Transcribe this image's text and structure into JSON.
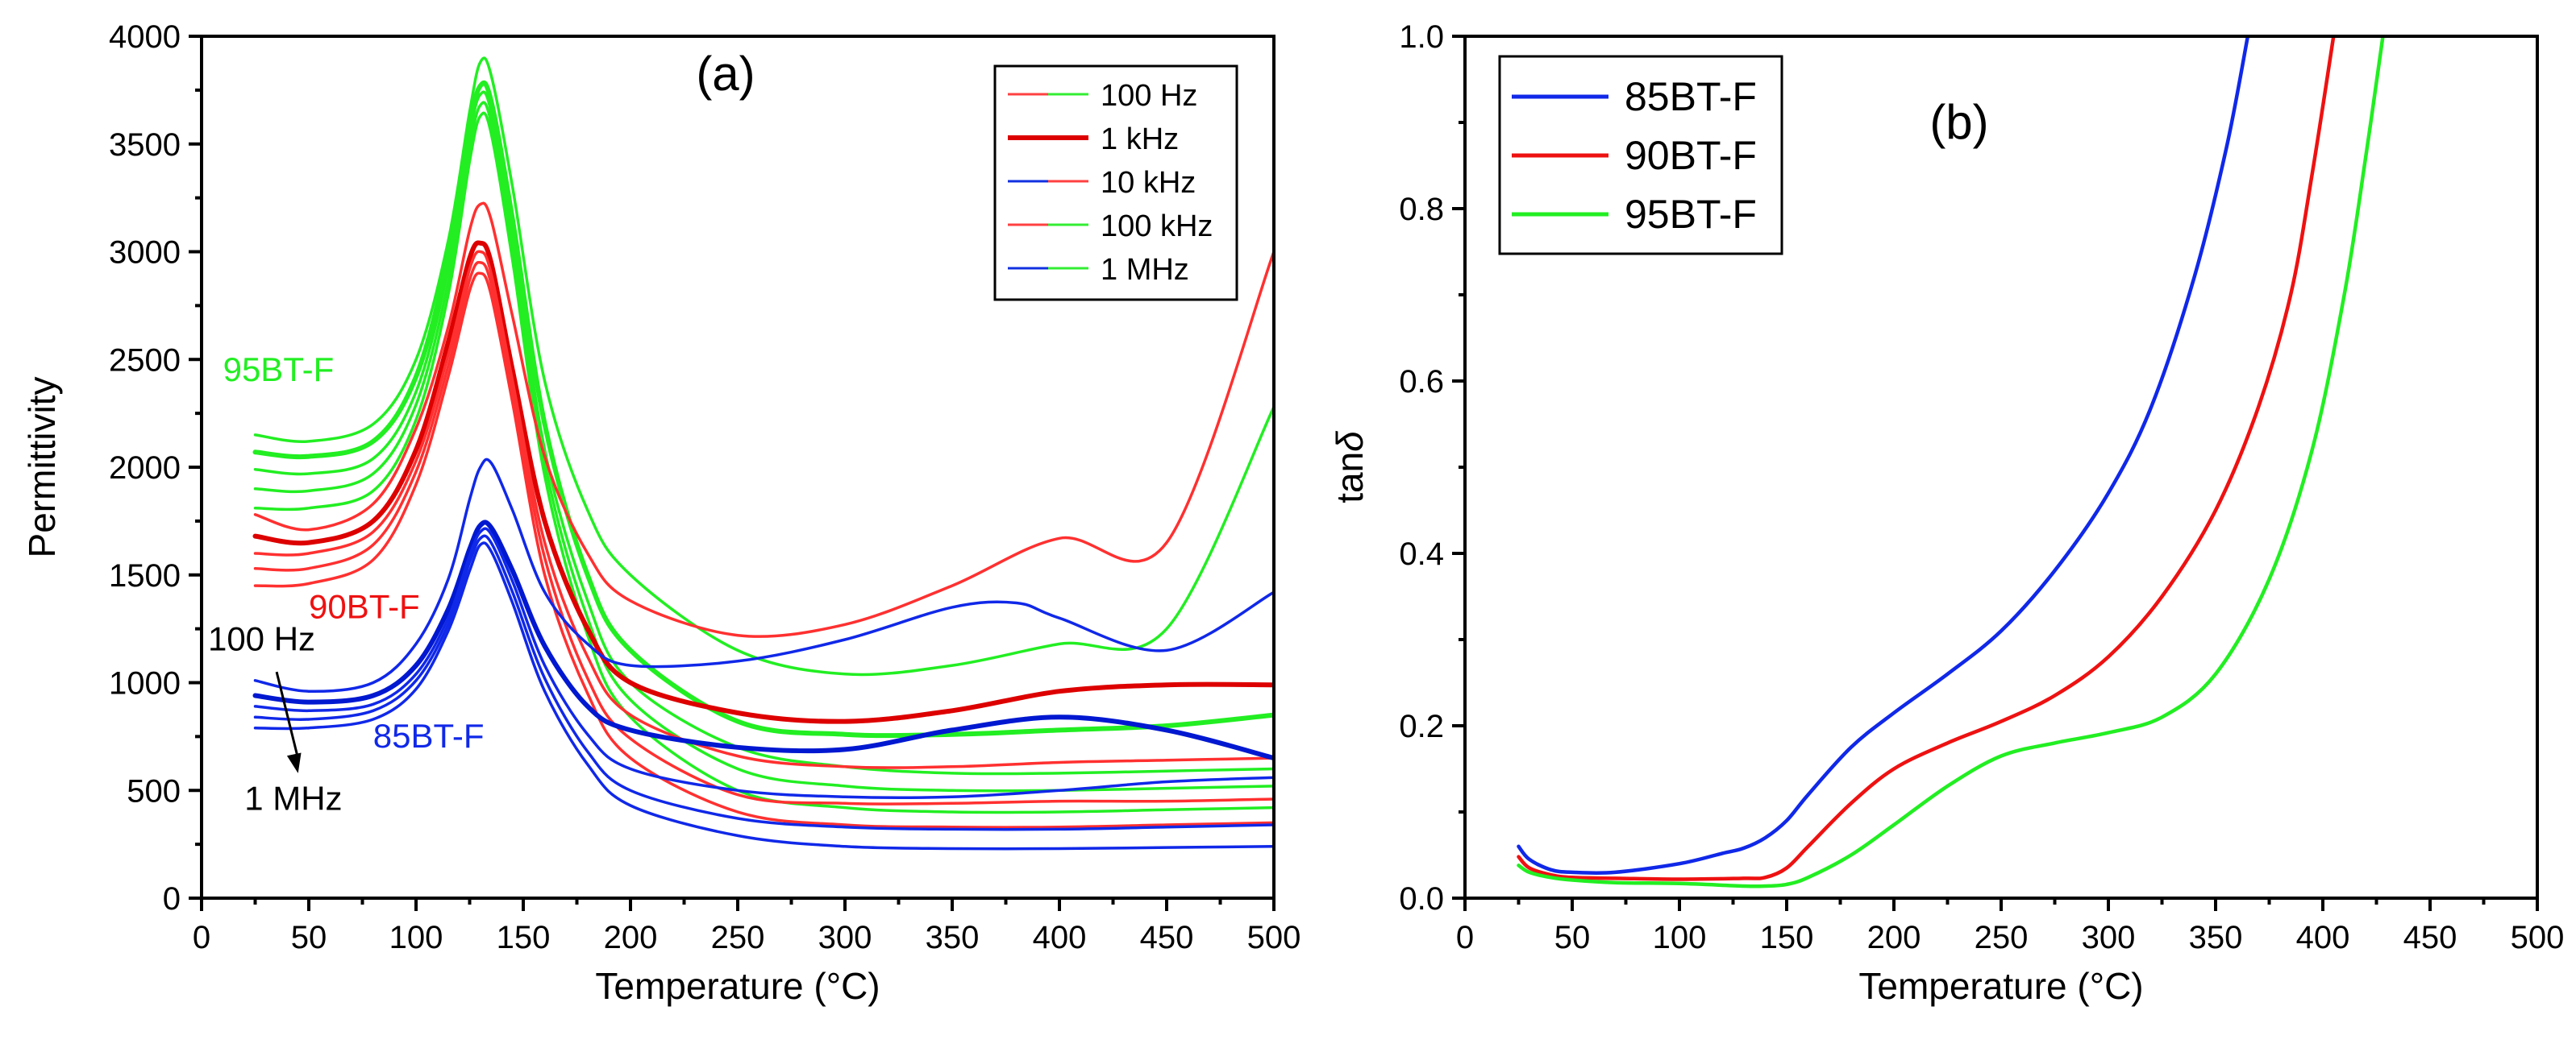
{
  "chart_data": [
    {
      "id": "a",
      "type": "line",
      "panel_label": "(a)",
      "xlabel": "Temperature (°C)",
      "ylabel": "Permittivity",
      "xlim": [
        0,
        500
      ],
      "ylim": [
        0,
        4000
      ],
      "xticks": [
        0,
        50,
        100,
        150,
        200,
        250,
        300,
        350,
        400,
        450,
        500
      ],
      "yticks": [
        0,
        500,
        1000,
        1500,
        2000,
        2500,
        3000,
        3500,
        4000
      ],
      "legend_position": "top-right",
      "legend": [
        {
          "label": "100 Hz",
          "color": "#ff4040",
          "color2": "#33ee33"
        },
        {
          "label": "1 kHz",
          "color": "#dd0000",
          "color2": "#dd0000"
        },
        {
          "label": "10 kHz",
          "color": "#1030e0",
          "color2": "#ff4040"
        },
        {
          "label": "100 kHz",
          "color": "#ff4040",
          "color2": "#33ee33"
        },
        {
          "label": "1 MHz",
          "color": "#1030e0",
          "color2": "#33ee33"
        }
      ],
      "annotations": [
        {
          "text": "95BT-F",
          "color": "#22ee22",
          "x": 10,
          "y": 2400
        },
        {
          "text": "90BT-F",
          "color": "#ee1111",
          "x": 50,
          "y": 1300
        },
        {
          "text": "85BT-F",
          "color": "#1028e8",
          "x": 80,
          "y": 700
        },
        {
          "text": "100 Hz",
          "color": "#000000",
          "x": 3,
          "y": 1150
        },
        {
          "text": "1 MHz",
          "color": "#000000",
          "x": 20,
          "y": 410
        }
      ],
      "frequency_arrow": {
        "from": [
          35,
          1050
        ],
        "to": [
          45,
          580
        ]
      },
      "series": [
        {
          "group": "95BT-F",
          "frequency": "100 Hz",
          "color": "#22ee22",
          "x": [
            25,
            50,
            80,
            100,
            115,
            125,
            130,
            135,
            145,
            160,
            180,
            200,
            250,
            300,
            350,
            400,
            450,
            500
          ],
          "y": [
            2150,
            2120,
            2200,
            2500,
            3050,
            3650,
            3880,
            3820,
            3300,
            2400,
            1800,
            1500,
            1150,
            1040,
            1080,
            1180,
            1250,
            2280
          ]
        },
        {
          "group": "95BT-F",
          "frequency": "1 kHz",
          "color": "#22ee22",
          "x": [
            25,
            50,
            80,
            100,
            115,
            125,
            130,
            135,
            145,
            160,
            180,
            200,
            250,
            300,
            350,
            400,
            450,
            500
          ],
          "y": [
            2070,
            2050,
            2120,
            2420,
            2980,
            3580,
            3770,
            3700,
            3150,
            2200,
            1500,
            1150,
            820,
            760,
            760,
            780,
            800,
            850
          ]
        },
        {
          "group": "95BT-F",
          "frequency": "10 kHz",
          "color": "#22ee22",
          "x": [
            25,
            50,
            80,
            100,
            115,
            125,
            130,
            135,
            145,
            160,
            180,
            200,
            250,
            300,
            350,
            400,
            450,
            500
          ],
          "y": [
            1990,
            1970,
            2040,
            2350,
            2920,
            3540,
            3730,
            3650,
            3080,
            2080,
            1380,
            1000,
            700,
            610,
            580,
            580,
            590,
            600
          ]
        },
        {
          "group": "95BT-F",
          "frequency": "100 kHz",
          "color": "#22ee22",
          "x": [
            25,
            50,
            80,
            100,
            115,
            125,
            130,
            135,
            145,
            160,
            180,
            200,
            250,
            300,
            350,
            400,
            450,
            500
          ],
          "y": [
            1900,
            1890,
            1970,
            2290,
            2860,
            3480,
            3680,
            3600,
            3020,
            2020,
            1300,
            920,
            600,
            520,
            500,
            500,
            510,
            520
          ]
        },
        {
          "group": "95BT-F",
          "frequency": "1 MHz",
          "color": "#22ee22",
          "x": [
            25,
            50,
            80,
            100,
            115,
            125,
            130,
            135,
            145,
            160,
            180,
            200,
            250,
            300,
            350,
            400,
            450,
            500
          ],
          "y": [
            1810,
            1810,
            1890,
            2220,
            2800,
            3420,
            3630,
            3550,
            2960,
            1960,
            1220,
            840,
            500,
            420,
            400,
            400,
            410,
            420
          ]
        },
        {
          "group": "90BT-F",
          "frequency": "100 Hz",
          "color": "#ff3030",
          "x": [
            25,
            50,
            80,
            100,
            115,
            125,
            130,
            135,
            145,
            160,
            180,
            200,
            250,
            300,
            350,
            400,
            450,
            500
          ],
          "y": [
            1780,
            1710,
            1830,
            2180,
            2650,
            3100,
            3220,
            3150,
            2700,
            2050,
            1600,
            1380,
            1220,
            1270,
            1450,
            1670,
            1650,
            3000
          ]
        },
        {
          "group": "90BT-F",
          "frequency": "1 kHz",
          "color": "#dd0000",
          "x": [
            25,
            50,
            80,
            100,
            115,
            125,
            130,
            135,
            145,
            160,
            180,
            200,
            250,
            300,
            350,
            400,
            450,
            500
          ],
          "y": [
            1680,
            1650,
            1750,
            2080,
            2580,
            2970,
            3040,
            2950,
            2450,
            1750,
            1250,
            1000,
            860,
            820,
            870,
            960,
            990,
            990
          ]
        },
        {
          "group": "90BT-F",
          "frequency": "10 kHz",
          "color": "#ff3030",
          "x": [
            25,
            50,
            80,
            100,
            115,
            125,
            130,
            135,
            145,
            160,
            180,
            200,
            250,
            300,
            350,
            400,
            450,
            500
          ],
          "y": [
            1600,
            1600,
            1700,
            2030,
            2520,
            2920,
            3000,
            2900,
            2400,
            1650,
            1120,
            850,
            660,
            610,
            610,
            630,
            640,
            650
          ]
        },
        {
          "group": "90BT-F",
          "frequency": "100 kHz",
          "color": "#ff3030",
          "x": [
            25,
            50,
            80,
            100,
            115,
            125,
            130,
            135,
            145,
            160,
            180,
            200,
            250,
            300,
            350,
            400,
            450,
            500
          ],
          "y": [
            1530,
            1530,
            1640,
            1980,
            2470,
            2870,
            2950,
            2850,
            2350,
            1580,
            1020,
            740,
            480,
            440,
            440,
            450,
            450,
            460
          ]
        },
        {
          "group": "90BT-F",
          "frequency": "1 MHz",
          "color": "#ff3030",
          "x": [
            25,
            50,
            80,
            100,
            115,
            125,
            130,
            135,
            145,
            160,
            180,
            200,
            250,
            300,
            350,
            400,
            450,
            500
          ],
          "y": [
            1450,
            1460,
            1570,
            1920,
            2420,
            2820,
            2900,
            2800,
            2300,
            1500,
            950,
            650,
            400,
            340,
            330,
            330,
            340,
            350
          ]
        },
        {
          "group": "85BT-F",
          "frequency": "100 Hz",
          "color": "#1028e8",
          "x": [
            25,
            50,
            80,
            100,
            115,
            125,
            130,
            135,
            145,
            160,
            180,
            200,
            250,
            300,
            350,
            380,
            400,
            450,
            500
          ],
          "y": [
            1010,
            960,
            1000,
            1180,
            1480,
            1850,
            2000,
            2020,
            1800,
            1420,
            1180,
            1080,
            1100,
            1200,
            1350,
            1370,
            1300,
            1150,
            1420
          ]
        },
        {
          "group": "85BT-F",
          "frequency": "1 kHz",
          "color": "#0018d0",
          "x": [
            25,
            50,
            80,
            100,
            115,
            125,
            130,
            135,
            145,
            160,
            180,
            200,
            250,
            300,
            350,
            400,
            450,
            500
          ],
          "y": [
            940,
            910,
            940,
            1080,
            1340,
            1620,
            1730,
            1720,
            1520,
            1170,
            890,
            780,
            700,
            690,
            780,
            840,
            780,
            650
          ]
        },
        {
          "group": "85BT-F",
          "frequency": "10 kHz",
          "color": "#1028e8",
          "x": [
            25,
            50,
            80,
            100,
            115,
            125,
            130,
            135,
            145,
            160,
            180,
            200,
            250,
            300,
            350,
            400,
            450,
            500
          ],
          "y": [
            890,
            870,
            900,
            1040,
            1300,
            1590,
            1700,
            1690,
            1470,
            1080,
            760,
            600,
            500,
            470,
            470,
            500,
            540,
            560
          ]
        },
        {
          "group": "85BT-F",
          "frequency": "100 kHz",
          "color": "#1028e8",
          "x": [
            25,
            50,
            80,
            100,
            115,
            125,
            130,
            135,
            145,
            160,
            180,
            200,
            250,
            300,
            350,
            400,
            450,
            500
          ],
          "y": [
            840,
            830,
            870,
            1010,
            1270,
            1560,
            1670,
            1650,
            1420,
            1020,
            680,
            500,
            370,
            330,
            320,
            320,
            330,
            340
          ]
        },
        {
          "group": "85BT-F",
          "frequency": "1 MHz",
          "color": "#1028e8",
          "x": [
            25,
            50,
            80,
            100,
            115,
            125,
            130,
            135,
            145,
            160,
            180,
            200,
            250,
            300,
            350,
            400,
            450,
            500
          ],
          "y": [
            790,
            790,
            830,
            970,
            1240,
            1520,
            1640,
            1610,
            1370,
            960,
            620,
            430,
            290,
            240,
            230,
            230,
            235,
            240
          ]
        }
      ]
    },
    {
      "id": "b",
      "type": "line",
      "panel_label": "(b)",
      "xlabel": "Temperature (°C)",
      "ylabel": "tan",
      "ylabel_symbol": "δ",
      "xlim": [
        0,
        500
      ],
      "ylim": [
        0.0,
        1.0
      ],
      "xticks": [
        0,
        50,
        100,
        150,
        200,
        250,
        300,
        350,
        400,
        450,
        500
      ],
      "yticks": [
        0.0,
        0.2,
        0.4,
        0.6,
        0.8,
        1.0
      ],
      "legend_position": "top-left",
      "legend": [
        {
          "label": "85BT-F",
          "color": "#1028e8"
        },
        {
          "label": "90BT-F",
          "color": "#ee1111"
        },
        {
          "label": "95BT-F",
          "color": "#22ee22"
        }
      ],
      "series": [
        {
          "name": "85BT-F",
          "color": "#1028e8",
          "x": [
            25,
            30,
            40,
            50,
            70,
            100,
            120,
            130,
            140,
            150,
            160,
            180,
            200,
            225,
            250,
            275,
            300,
            320,
            340,
            355,
            365
          ],
          "y": [
            0.06,
            0.045,
            0.033,
            0.03,
            0.03,
            0.04,
            0.052,
            0.058,
            0.07,
            0.09,
            0.12,
            0.175,
            0.215,
            0.26,
            0.31,
            0.38,
            0.47,
            0.57,
            0.72,
            0.87,
            1.0
          ]
        },
        {
          "name": "90BT-F",
          "color": "#ee1111",
          "x": [
            25,
            30,
            40,
            50,
            70,
            100,
            130,
            140,
            150,
            160,
            180,
            200,
            225,
            250,
            275,
            300,
            325,
            350,
            370,
            385,
            395,
            405
          ],
          "y": [
            0.048,
            0.035,
            0.027,
            0.024,
            0.023,
            0.022,
            0.023,
            0.024,
            0.035,
            0.06,
            0.11,
            0.15,
            0.18,
            0.205,
            0.235,
            0.28,
            0.35,
            0.45,
            0.57,
            0.7,
            0.84,
            1.0
          ]
        },
        {
          "name": "95BT-F",
          "color": "#22ee22",
          "x": [
            25,
            30,
            40,
            50,
            70,
            100,
            130,
            140,
            150,
            160,
            180,
            200,
            225,
            250,
            275,
            300,
            325,
            350,
            375,
            395,
            410,
            420,
            428
          ],
          "y": [
            0.038,
            0.03,
            0.024,
            0.021,
            0.018,
            0.017,
            0.014,
            0.014,
            0.016,
            0.024,
            0.05,
            0.085,
            0.13,
            0.165,
            0.18,
            0.192,
            0.21,
            0.26,
            0.37,
            0.52,
            0.7,
            0.86,
            1.0
          ]
        }
      ]
    }
  ]
}
